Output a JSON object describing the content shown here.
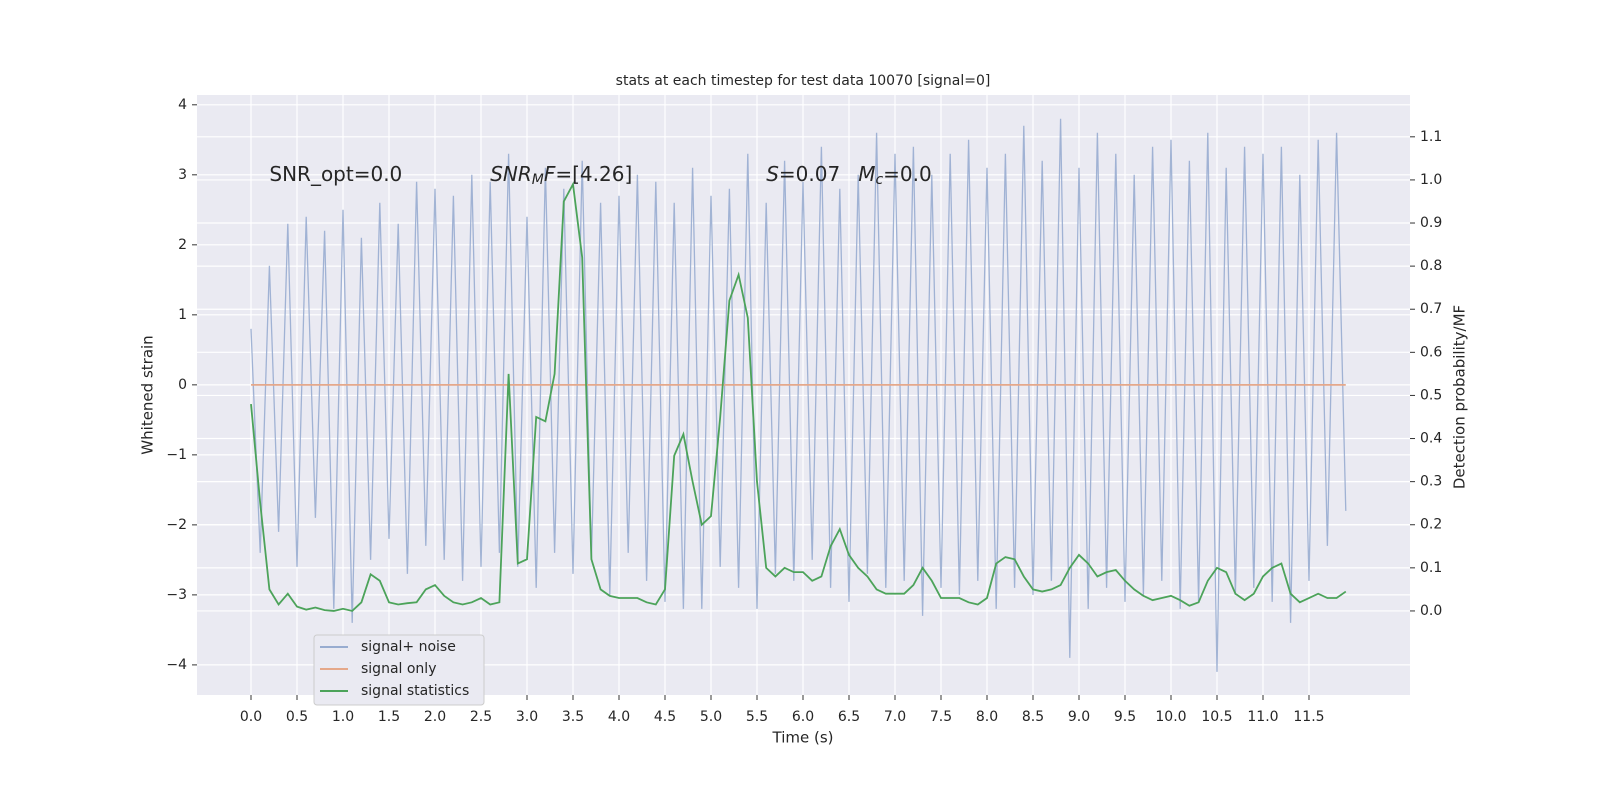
{
  "chart_data": {
    "type": "line",
    "title": "stats at each timestep for test data 10070 [signal=0]",
    "xlabel": "Time (s)",
    "ylabel": "Whitened strain",
    "y2label": "Detection probability/MF",
    "annotations": [
      {
        "parts": [
          "SNR_opt=0.0"
        ],
        "x": 0.2,
        "y": 3.0
      },
      {
        "parts": [
          "SNR",
          "M",
          "F",
          "=[4.26]"
        ],
        "x": 2.6,
        "y": 3.0
      },
      {
        "parts": [
          "S",
          "=0.07"
        ],
        "x": 5.6,
        "y": 3.0
      },
      {
        "parts": [
          "M",
          "c",
          "=0.0"
        ],
        "x": 6.6,
        "y": 3.0
      }
    ],
    "x": [
      0.0,
      0.1,
      0.2,
      0.3,
      0.4,
      0.5,
      0.6,
      0.7,
      0.8,
      0.9,
      1.0,
      1.1,
      1.2,
      1.3,
      1.4,
      1.5,
      1.6,
      1.7,
      1.8,
      1.9,
      2.0,
      2.1,
      2.2,
      2.3,
      2.4,
      2.5,
      2.6,
      2.7,
      2.8,
      2.9,
      3.0,
      3.1,
      3.2,
      3.3,
      3.4,
      3.5,
      3.6,
      3.7,
      3.8,
      3.9,
      4.0,
      4.1,
      4.2,
      4.3,
      4.4,
      4.5,
      4.6,
      4.7,
      4.8,
      4.9,
      5.0,
      5.1,
      5.2,
      5.3,
      5.4,
      5.5,
      5.6,
      5.7,
      5.8,
      5.9,
      6.0,
      6.1,
      6.2,
      6.3,
      6.4,
      6.5,
      6.6,
      6.7,
      6.8,
      6.9,
      7.0,
      7.1,
      7.2,
      7.3,
      7.4,
      7.5,
      7.6,
      7.7,
      7.8,
      7.9,
      8.0,
      8.1,
      8.2,
      8.3,
      8.4,
      8.5,
      8.6,
      8.7,
      8.8,
      8.9,
      9.0,
      9.1,
      9.2,
      9.3,
      9.4,
      9.5,
      9.6,
      9.7,
      9.8,
      9.9,
      10.0,
      10.1,
      10.2,
      10.3,
      10.4,
      10.5,
      10.6,
      10.7,
      10.8,
      10.9,
      11.0,
      11.1,
      11.2,
      11.3,
      11.4,
      11.5,
      11.6,
      11.7,
      11.8,
      11.9
    ],
    "series": [
      {
        "name": "signal+ noise",
        "color": "#98acd0",
        "axis": "y",
        "values": [
          0.8,
          -2.4,
          1.7,
          -2.1,
          2.3,
          -2.6,
          2.4,
          -1.9,
          2.2,
          -3.2,
          2.5,
          -3.4,
          2.1,
          -2.5,
          2.6,
          -2.2,
          2.3,
          -2.7,
          2.9,
          -2.3,
          2.8,
          -2.5,
          2.7,
          -2.8,
          3.0,
          -2.6,
          2.9,
          -2.4,
          3.3,
          -2.6,
          2.4,
          -2.9,
          3.1,
          -2.4,
          2.8,
          -2.7,
          3.2,
          -2.5,
          2.6,
          -3.0,
          2.7,
          -2.4,
          3.0,
          -2.8,
          2.9,
          -3.1,
          2.6,
          -3.2,
          3.1,
          -3.2,
          2.7,
          -2.6,
          2.8,
          -2.9,
          3.3,
          -3.2,
          2.6,
          -2.7,
          3.2,
          -2.8,
          2.9,
          -2.5,
          3.4,
          -2.9,
          2.8,
          -3.1,
          3.0,
          -2.7,
          3.6,
          -2.9,
          3.3,
          -2.8,
          3.4,
          -3.3,
          3.0,
          -2.9,
          3.3,
          -3.0,
          3.5,
          -2.8,
          3.1,
          -3.2,
          3.3,
          -2.9,
          3.7,
          -3.0,
          3.2,
          -2.8,
          3.8,
          -3.9,
          3.1,
          -3.2,
          3.6,
          -2.9,
          3.3,
          -3.1,
          3.0,
          -3.0,
          3.4,
          -2.8,
          3.5,
          -3.2,
          3.2,
          -3.1,
          3.6,
          -4.1,
          3.1,
          -3.0,
          3.4,
          -2.9,
          3.3,
          -3.1,
          3.4,
          -3.4,
          3.0,
          -2.8,
          3.5,
          -2.3,
          3.6,
          -1.8
        ]
      },
      {
        "name": "signal only",
        "color": "#e5a88a",
        "axis": "y",
        "values": [
          0,
          0,
          0,
          0,
          0,
          0,
          0,
          0,
          0,
          0,
          0,
          0,
          0,
          0,
          0,
          0,
          0,
          0,
          0,
          0,
          0,
          0,
          0,
          0,
          0,
          0,
          0,
          0,
          0,
          0,
          0,
          0,
          0,
          0,
          0,
          0,
          0,
          0,
          0,
          0,
          0,
          0,
          0,
          0,
          0,
          0,
          0,
          0,
          0,
          0,
          0,
          0,
          0,
          0,
          0,
          0,
          0,
          0,
          0,
          0,
          0,
          0,
          0,
          0,
          0,
          0,
          0,
          0,
          0,
          0,
          0,
          0,
          0,
          0,
          0,
          0,
          0,
          0,
          0,
          0,
          0,
          0,
          0,
          0,
          0,
          0,
          0,
          0,
          0,
          0,
          0,
          0,
          0,
          0,
          0,
          0,
          0,
          0,
          0,
          0,
          0,
          0,
          0,
          0,
          0,
          0,
          0,
          0,
          0,
          0,
          0,
          0,
          0,
          0,
          0,
          0,
          0,
          0,
          0,
          0
        ]
      },
      {
        "name": "signal statistics",
        "color": "#4ca35a",
        "axis": "y2",
        "values": [
          0.48,
          0.25,
          0.05,
          0.015,
          0.04,
          0.01,
          0.003,
          0.008,
          0.002,
          0.0,
          0.005,
          0.0,
          0.02,
          0.085,
          0.07,
          0.02,
          0.015,
          0.018,
          0.02,
          0.05,
          0.06,
          0.035,
          0.02,
          0.015,
          0.02,
          0.03,
          0.015,
          0.02,
          0.55,
          0.11,
          0.12,
          0.45,
          0.44,
          0.55,
          0.95,
          0.99,
          0.82,
          0.12,
          0.05,
          0.035,
          0.03,
          0.03,
          0.03,
          0.02,
          0.015,
          0.05,
          0.36,
          0.41,
          0.3,
          0.2,
          0.22,
          0.45,
          0.72,
          0.78,
          0.68,
          0.3,
          0.1,
          0.08,
          0.1,
          0.09,
          0.09,
          0.07,
          0.08,
          0.15,
          0.19,
          0.13,
          0.1,
          0.08,
          0.05,
          0.04,
          0.04,
          0.04,
          0.06,
          0.1,
          0.07,
          0.03,
          0.03,
          0.03,
          0.02,
          0.015,
          0.03,
          0.11,
          0.125,
          0.12,
          0.08,
          0.05,
          0.045,
          0.05,
          0.06,
          0.1,
          0.13,
          0.11,
          0.08,
          0.09,
          0.095,
          0.07,
          0.05,
          0.035,
          0.025,
          0.03,
          0.035,
          0.025,
          0.012,
          0.02,
          0.07,
          0.1,
          0.09,
          0.04,
          0.025,
          0.04,
          0.08,
          0.1,
          0.11,
          0.04,
          0.02,
          0.03,
          0.04,
          0.03,
          0.03,
          0.045
        ]
      }
    ],
    "xlim": [
      -0.587,
      12.598
    ],
    "ylim": [
      -4.43,
      4.14
    ],
    "y2lim": [
      -0.195,
      1.197
    ],
    "xticks": [
      {
        "value": 0,
        "label": "0.0"
      },
      0.5,
      {
        "value": 1,
        "label": "1.0"
      },
      1.5,
      {
        "value": 2,
        "label": "2.0"
      },
      2.5,
      {
        "value": 3,
        "label": "3.0"
      },
      3.5,
      {
        "value": 4,
        "label": "4.0"
      },
      4.5,
      {
        "value": 5,
        "label": "5.0"
      },
      5.5,
      {
        "value": 6,
        "label": "6.0"
      },
      6.5,
      {
        "value": 7,
        "label": "7.0"
      },
      7.5,
      {
        "value": 8,
        "label": "8.0"
      },
      8.5,
      {
        "value": 9,
        "label": "9.0"
      },
      9.5,
      {
        "value": 10,
        "label": "10.0"
      },
      10.5,
      {
        "value": 11,
        "label": "11.0"
      },
      11.5
    ],
    "yticks": [
      {
        "value": -4,
        "label": "−4"
      },
      {
        "value": -3,
        "label": "−3"
      },
      {
        "value": -2,
        "label": "−2"
      },
      {
        "value": -1,
        "label": "−1"
      },
      0,
      1,
      2,
      3,
      4
    ],
    "y2ticks": [
      {
        "value": 0,
        "label": "0.0"
      },
      0.1,
      0.2,
      0.3,
      0.4,
      0.5,
      0.6,
      0.7,
      0.8,
      0.9,
      {
        "value": 1,
        "label": "1.0"
      },
      1.1
    ],
    "grid": true,
    "legend": "lower left"
  }
}
